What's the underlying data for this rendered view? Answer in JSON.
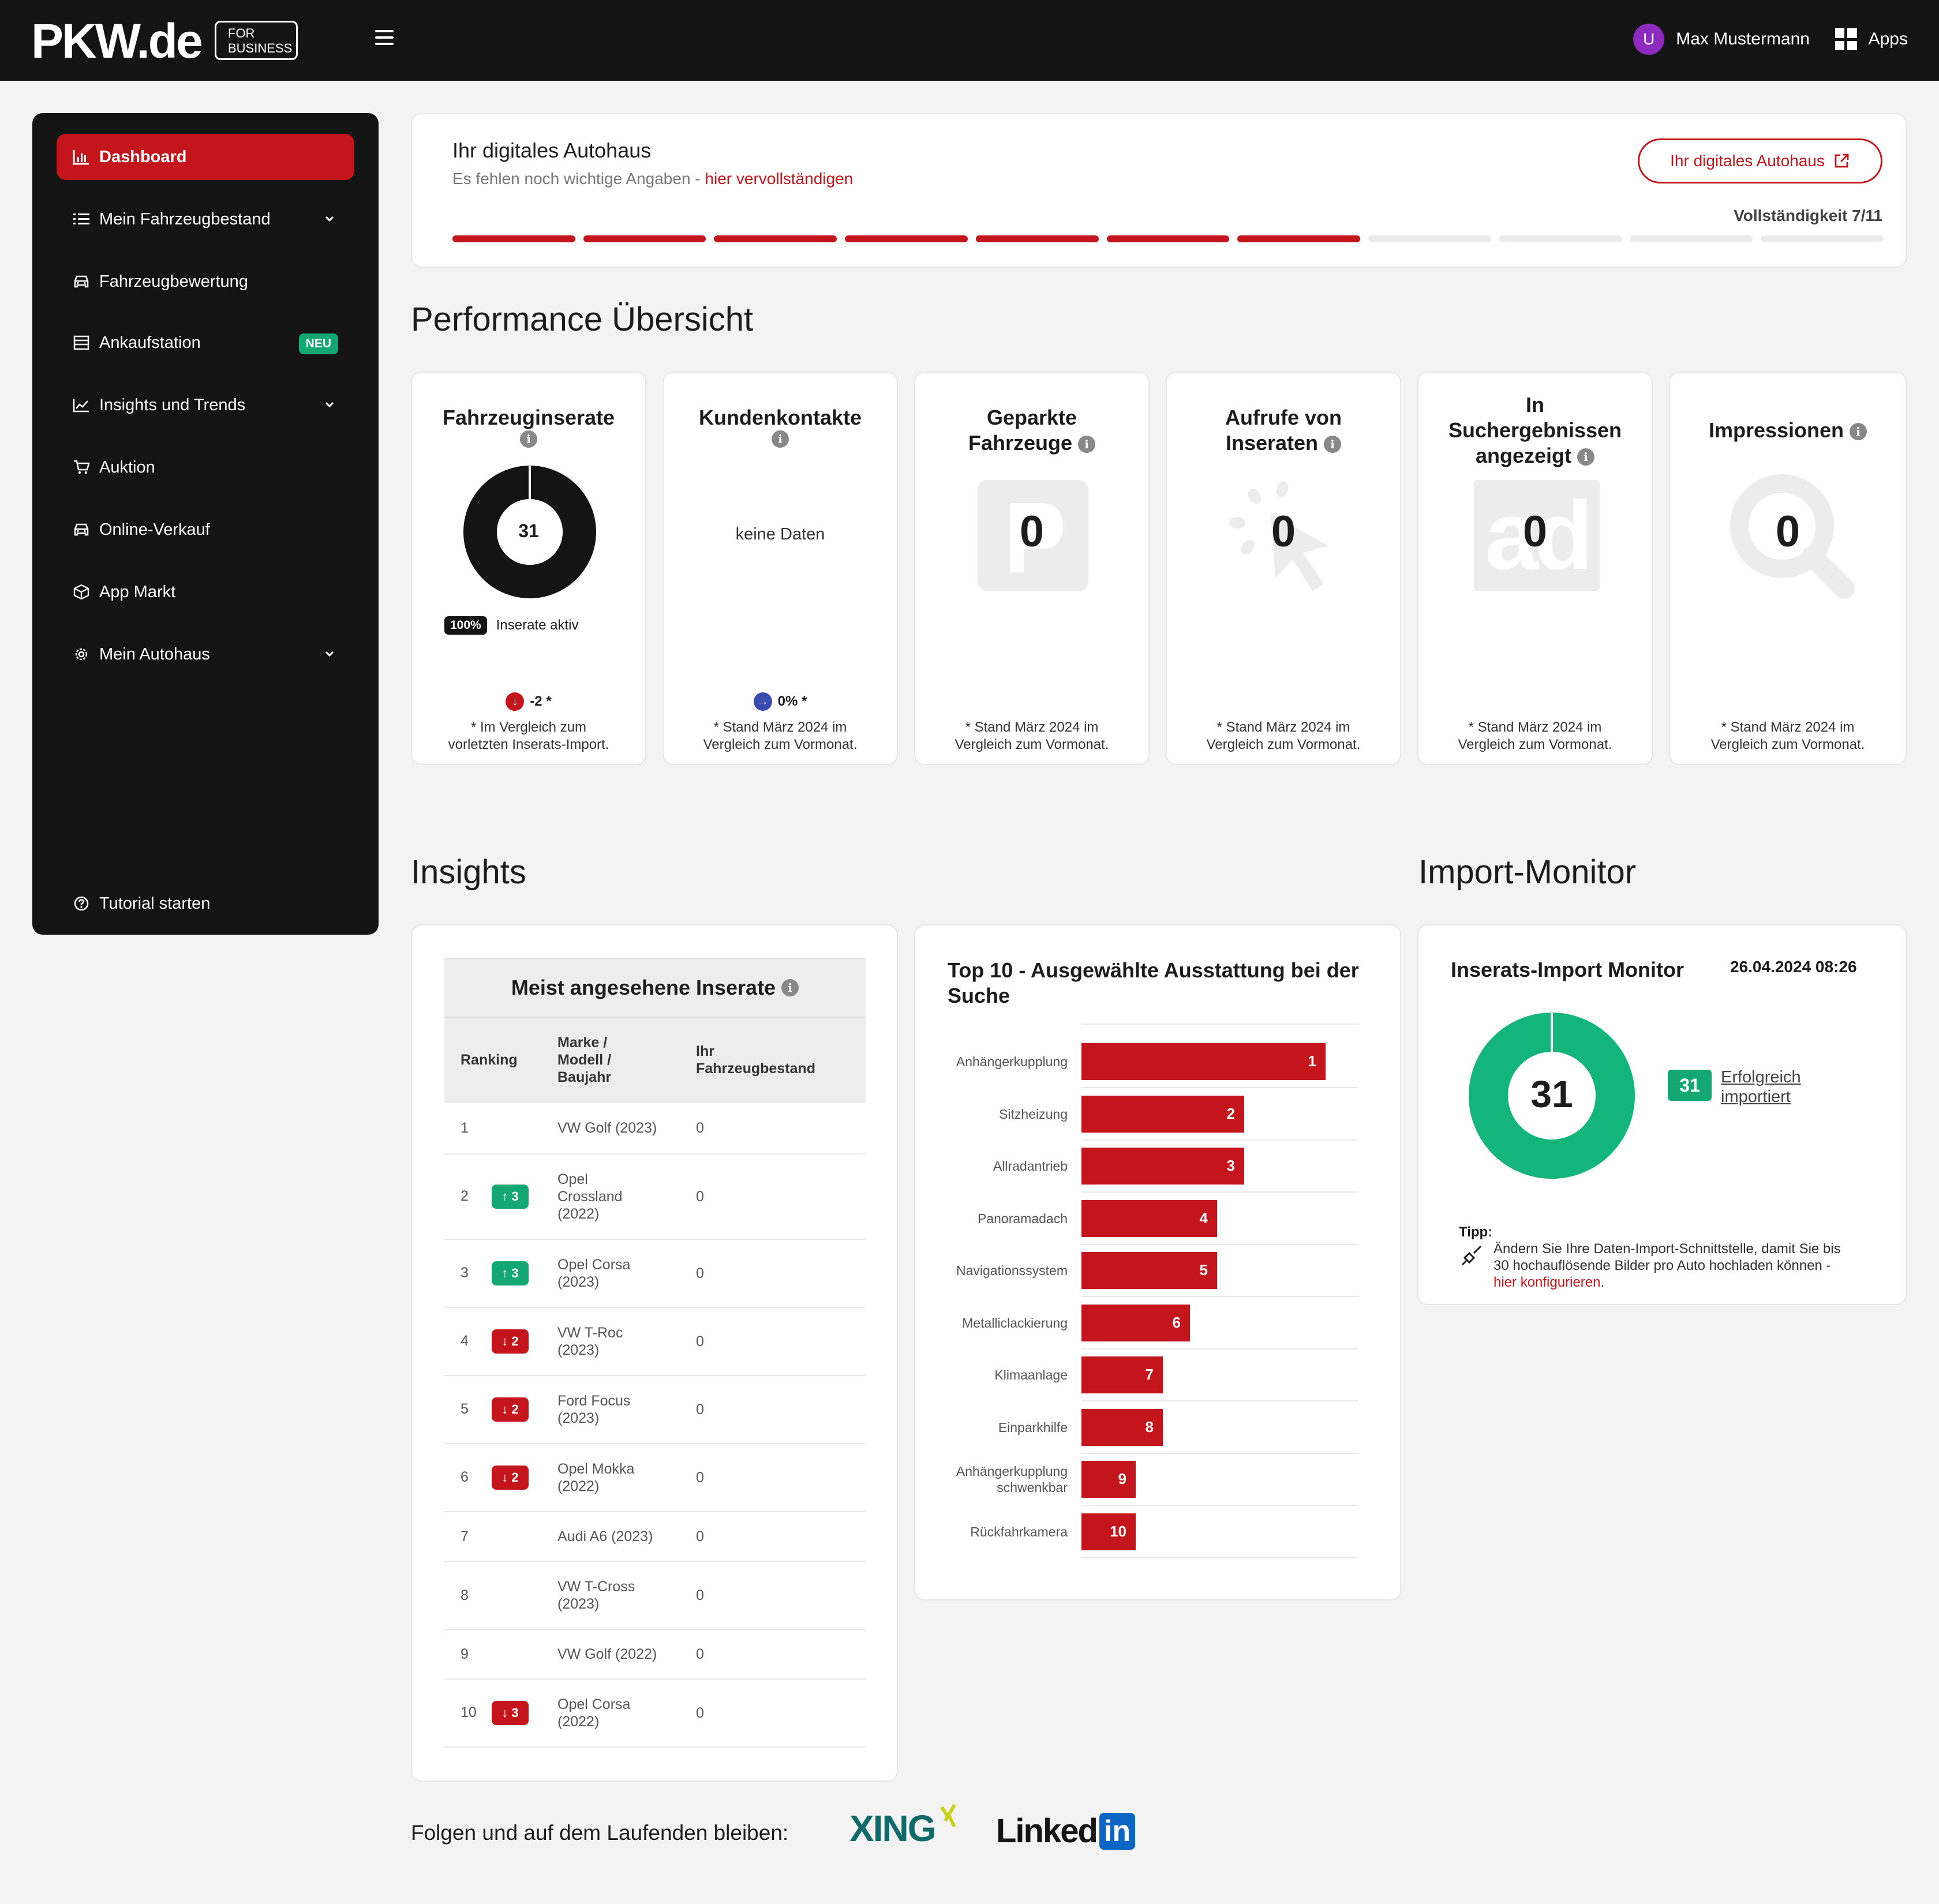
{
  "header": {
    "logo": "PKW.de",
    "logo_badge_line1": "FOR",
    "logo_badge_line2": "BUSINESS",
    "avatar_initial": "U",
    "user_name": "Max Mustermann",
    "apps_label": "Apps"
  },
  "sidebar": {
    "items": [
      {
        "label": "Dashboard",
        "icon": "bar-chart-icon",
        "active": true
      },
      {
        "label": "Mein Fahrzeugbestand",
        "icon": "list-icon",
        "chevron": true
      },
      {
        "label": "Fahrzeugbewertung",
        "icon": "car-icon"
      },
      {
        "label": "Ankaufstation",
        "icon": "table-icon",
        "badge": "NEU"
      },
      {
        "label": "Insights und Trends",
        "icon": "line-chart-icon",
        "chevron": true
      },
      {
        "label": "Auktion",
        "icon": "cart-icon"
      },
      {
        "label": "Online-Verkauf",
        "icon": "car-icon"
      },
      {
        "label": "App Markt",
        "icon": "cube-icon"
      },
      {
        "label": "Mein Autohaus",
        "icon": "gear-icon",
        "chevron": true
      }
    ],
    "tutorial": "Tutorial starten"
  },
  "autohaus": {
    "title": "Ihr digitales Autohaus",
    "subtitle_prefix": "Es fehlen noch wichtige Angaben - ",
    "subtitle_link": "hier vervollständigen",
    "button": "Ihr digitales Autohaus",
    "completeness_label": "Vollständigkeit 7/11",
    "completed_steps": 7,
    "total_steps": 11
  },
  "performance": {
    "title": "Performance Übersicht",
    "cards": [
      {
        "title_line1": "Fahrzeuginserate",
        "title_line2": "",
        "value": "31",
        "active_pct": "100%",
        "active_label": "Inserate aktiv",
        "trend": "-2 *",
        "foot1": "* Im Vergleich zum",
        "foot2": "vorletzten Inserats-Import."
      },
      {
        "title_line1": "Kundenkontakte",
        "title_line2": "",
        "value": "keine Daten",
        "trend": "0% *",
        "foot1": "* Stand März 2024 im",
        "foot2": "Vergleich zum Vormonat."
      },
      {
        "title_line1": "Geparkte",
        "title_line2": "Fahrzeuge",
        "value": "0",
        "foot1": "* Stand März 2024 im",
        "foot2": "Vergleich zum Vormonat."
      },
      {
        "title_line1": "Aufrufe von",
        "title_line2": "Inseraten",
        "value": "0",
        "foot1": "* Stand März 2024 im",
        "foot2": "Vergleich zum Vormonat."
      },
      {
        "title_line1": "In",
        "title_line2": "Suchergebnissen",
        "title_line3": "angezeigt",
        "value": "0",
        "foot1": "* Stand März 2024 im",
        "foot2": "Vergleich zum Vormonat."
      },
      {
        "title_line1": "Impressionen",
        "title_line2": "",
        "value": "0",
        "foot1": "* Stand März 2024 im",
        "foot2": "Vergleich zum Vormonat."
      }
    ]
  },
  "insights": {
    "title": "Insights",
    "table": {
      "title": "Meist angesehene Inserate",
      "headers": [
        "Ranking",
        "Marke / Modell / Baujahr",
        "Ihr Fahrzeugbestand"
      ],
      "header_model_lines": [
        "Marke /",
        "Modell /",
        "Baujahr"
      ],
      "header_stock_lines": [
        "Ihr",
        "Fahrzeugbestand"
      ],
      "rows": [
        {
          "rank": "1",
          "change": "",
          "dir": "",
          "model_lines": [
            "VW Golf (2023)"
          ],
          "stock": "0"
        },
        {
          "rank": "2",
          "change": "3",
          "dir": "up",
          "model_lines": [
            "Opel",
            "Crossland",
            "(2022)"
          ],
          "stock": "0"
        },
        {
          "rank": "3",
          "change": "3",
          "dir": "up",
          "model_lines": [
            "Opel Corsa",
            "(2023)"
          ],
          "stock": "0"
        },
        {
          "rank": "4",
          "change": "2",
          "dir": "down",
          "model_lines": [
            "VW T-Roc",
            "(2023)"
          ],
          "stock": "0"
        },
        {
          "rank": "5",
          "change": "2",
          "dir": "down",
          "model_lines": [
            "Ford Focus",
            "(2023)"
          ],
          "stock": "0"
        },
        {
          "rank": "6",
          "change": "2",
          "dir": "down",
          "model_lines": [
            "Opel Mokka",
            "(2022)"
          ],
          "stock": "0"
        },
        {
          "rank": "7",
          "change": "",
          "dir": "",
          "model_lines": [
            "Audi A6 (2023)"
          ],
          "stock": "0"
        },
        {
          "rank": "8",
          "change": "",
          "dir": "",
          "model_lines": [
            "VW T-Cross",
            "(2023)"
          ],
          "stock": "0"
        },
        {
          "rank": "9",
          "change": "",
          "dir": "",
          "model_lines": [
            "VW Golf (2022)"
          ],
          "stock": "0"
        },
        {
          "rank": "10",
          "change": "3",
          "dir": "down",
          "model_lines": [
            "Opel Corsa",
            "(2022)"
          ],
          "stock": "0"
        }
      ]
    }
  },
  "chart_data": {
    "type": "bar",
    "orientation": "horizontal",
    "title": "Top 10 - Ausgewählte Ausstattung bei der Suche",
    "categories": [
      "Anhängerkupplung",
      "Sitzheizung",
      "Allradantrieb",
      "Panoramadach",
      "Navigationssystem",
      "Metalliclackierung",
      "Klimaanlage",
      "Einparkhilfe",
      "Anhängerkupplung schwenkbar",
      "Rückfahrkamera"
    ],
    "category_lines": [
      [
        "Anhängerkupplung"
      ],
      [
        "Sitzheizung"
      ],
      [
        "Allradantrieb"
      ],
      [
        "Panoramadach"
      ],
      [
        "Navigationssystem"
      ],
      [
        "Metalliclackierung"
      ],
      [
        "Klimaanlage"
      ],
      [
        "Einparkhilfe"
      ],
      [
        "Anhängerkupplung",
        "schwenkbar"
      ],
      [
        "Rückfahrkamera"
      ]
    ],
    "values": [
      1,
      2,
      3,
      4,
      5,
      6,
      7,
      8,
      9,
      10
    ],
    "relative_lengths": [
      0.9,
      0.6,
      0.6,
      0.5,
      0.5,
      0.4,
      0.3,
      0.3,
      0.2,
      0.2
    ],
    "color": "#c4151c",
    "grid": true
  },
  "import_monitor": {
    "title": "Import-Monitor",
    "card_title": "Inserats-Import Monitor",
    "timestamp": "26.04.2024 08:26",
    "count": "31",
    "success_label_1": "Erfolgreich",
    "success_label_2": "importiert",
    "tip_label": "Tipp:",
    "tip_text_1": "Ändern Sie Ihre Daten-Import-Schnittstelle, damit Sie bis",
    "tip_text_2": "30 hochauflösende Bilder pro Auto hochladen können -",
    "tip_link": "hier konfigurieren",
    "tip_end": ".",
    "success_color": "#13b57a"
  },
  "footer": {
    "follow_text": "Folgen und auf dem Laufenden bleiben:",
    "xing": "XING",
    "linkedin_left": "Linked",
    "linkedin_right": "in"
  },
  "colors": {
    "brand_red": "#c4151c",
    "dark": "#141414",
    "green": "#13a872",
    "trend_blue": "#3a4bb0"
  }
}
